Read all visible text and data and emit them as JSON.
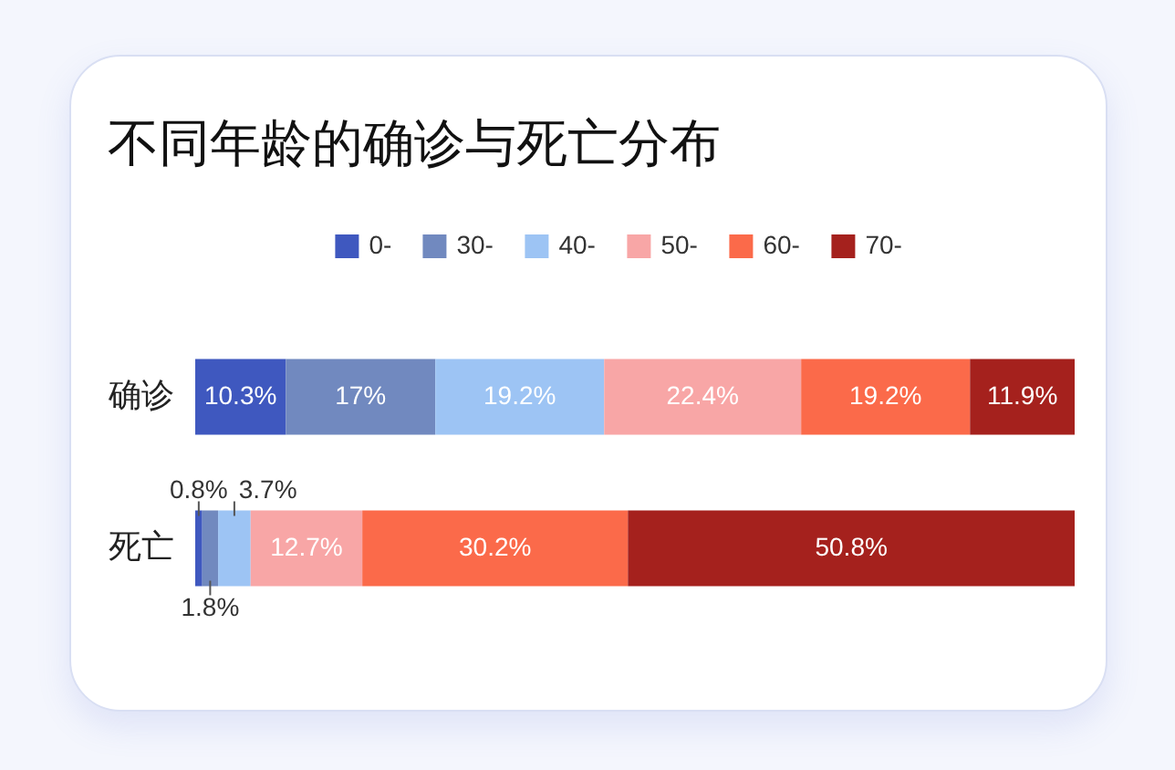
{
  "chart_data": {
    "type": "bar",
    "orientation": "horizontal",
    "stacked": true,
    "title": "不同年龄的确诊与死亡分布",
    "categories": [
      "确诊",
      "死亡"
    ],
    "series": [
      {
        "name": "0-",
        "color": "#3f58bf",
        "values": [
          10.3,
          0.8
        ],
        "value_labels": [
          "10.3%",
          "0.8%"
        ]
      },
      {
        "name": "30-",
        "color": "#7189bf",
        "values": [
          17,
          1.8
        ],
        "value_labels": [
          "17%",
          "1.8%"
        ]
      },
      {
        "name": "40-",
        "color": "#9dc4f4",
        "values": [
          19.2,
          3.7
        ],
        "value_labels": [
          "19.2%",
          "3.7%"
        ]
      },
      {
        "name": "50-",
        "color": "#f8a6a6",
        "values": [
          22.4,
          12.7
        ],
        "value_labels": [
          "22.4%",
          "12.7%"
        ]
      },
      {
        "name": "60-",
        "color": "#fb6a4a",
        "values": [
          19.2,
          30.2
        ],
        "value_labels": [
          "19.2%",
          "30.2%"
        ]
      },
      {
        "name": "70-",
        "color": "#a5211d",
        "values": [
          11.9,
          50.8
        ],
        "value_labels": [
          "11.9%",
          "50.8%"
        ]
      }
    ],
    "legend": "top",
    "tick_labels": "y"
  }
}
